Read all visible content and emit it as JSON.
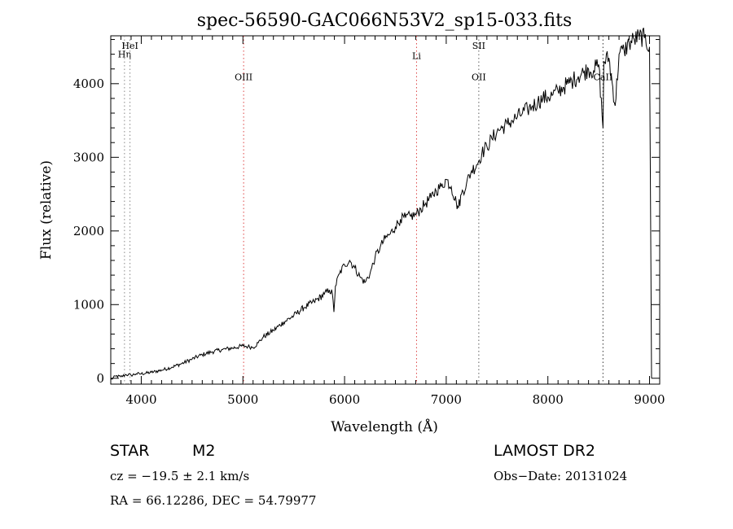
{
  "chart_data": {
    "type": "line",
    "title": "spec-56590-GAC066N53V2_sp15-033.fits",
    "xlabel": "Wavelength (Å)",
    "ylabel": "Flux (relative)",
    "xlim": [
      3700,
      9100
    ],
    "ylim": [
      -80,
      4650
    ],
    "xticks": [
      4000,
      5000,
      6000,
      7000,
      8000,
      9000
    ],
    "yticks": [
      0,
      1000,
      2000,
      3000,
      4000
    ],
    "xtick_labels": [
      "4000",
      "5000",
      "6000",
      "7000",
      "8000",
      "9000"
    ],
    "ytick_labels": [
      "0",
      "1000",
      "2000",
      "3000",
      "4000"
    ],
    "series": [
      {
        "name": "spectrum",
        "x": [
          3700,
          3750,
          3800,
          3850,
          3900,
          3950,
          4000,
          4100,
          4200,
          4300,
          4400,
          4500,
          4600,
          4700,
          4800,
          4900,
          5000,
          5050,
          5100,
          5150,
          5200,
          5300,
          5400,
          5500,
          5600,
          5700,
          5800,
          5850,
          5880,
          5895,
          5910,
          5950,
          6000,
          6050,
          6100,
          6150,
          6200,
          6250,
          6300,
          6350,
          6400,
          6450,
          6500,
          6550,
          6600,
          6650,
          6700,
          6750,
          6800,
          6850,
          6900,
          6950,
          7000,
          7050,
          7100,
          7120,
          7150,
          7200,
          7250,
          7300,
          7350,
          7400,
          7450,
          7500,
          7550,
          7600,
          7650,
          7700,
          7750,
          7800,
          7850,
          7900,
          7950,
          8000,
          8050,
          8100,
          8150,
          8200,
          8250,
          8300,
          8350,
          8400,
          8450,
          8500,
          8542,
          8550,
          8600,
          8662,
          8700,
          8750,
          8800,
          8850,
          8900,
          8950,
          9000,
          9020
        ],
        "y": [
          -20,
          30,
          20,
          50,
          40,
          60,
          60,
          80,
          110,
          150,
          200,
          260,
          320,
          360,
          390,
          410,
          440,
          430,
          420,
          480,
          560,
          650,
          760,
          850,
          960,
          1040,
          1140,
          1200,
          1150,
          900,
          1250,
          1420,
          1540,
          1600,
          1500,
          1380,
          1300,
          1420,
          1640,
          1780,
          1900,
          1960,
          2060,
          2160,
          2180,
          2200,
          2220,
          2300,
          2380,
          2450,
          2550,
          2600,
          2700,
          2600,
          2380,
          2320,
          2500,
          2650,
          2820,
          2900,
          3050,
          3150,
          3250,
          3350,
          3400,
          3450,
          3500,
          3550,
          3600,
          3650,
          3700,
          3750,
          3800,
          3820,
          3850,
          3900,
          3950,
          4000,
          4050,
          4100,
          4150,
          4200,
          4180,
          4260,
          3400,
          4300,
          4350,
          3700,
          4400,
          4450,
          4550,
          4600,
          4640,
          4620,
          4500,
          0
        ]
      }
    ],
    "lines": [
      {
        "name": "Hη",
        "x": 3835,
        "color": "#888888",
        "label_y": 4400
      },
      {
        "name": "HeI",
        "x": 3889,
        "color": "#888888",
        "label_y": 4520
      },
      {
        "name": "OIII",
        "x": 5007,
        "color": "#dd4444",
        "label_y": 4090
      },
      {
        "name": "Li",
        "x": 6708,
        "color": "#dd4444",
        "label_y": 4380
      },
      {
        "name": "OII",
        "x": 7320,
        "color": "#444444",
        "label_y": 4090
      },
      {
        "name": "SII",
        "x": 7320,
        "color": "#888888",
        "label_y": 4520
      },
      {
        "name": "CaII",
        "x": 8542,
        "color": "#333333",
        "label_y": 4090
      }
    ]
  },
  "info": {
    "object": "STAR",
    "subclass": "M2",
    "survey": "LAMOST DR2",
    "cz": "cz = −19.5 ± 2.1 km/s",
    "obs_date": "Obs−Date: 20131024",
    "radec": "RA =  66.12286, DEC =  54.79977"
  }
}
